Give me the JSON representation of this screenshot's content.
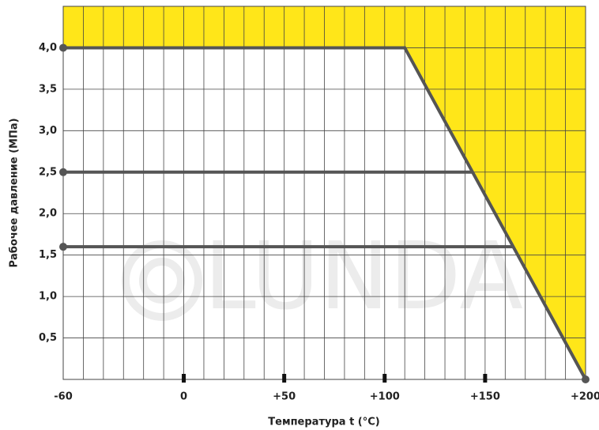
{
  "chart_data": {
    "type": "line",
    "x_label": "Температура t (°C)",
    "y_label": "Рабочее давление (МПа)",
    "watermark": "LUNDA",
    "xlim": [
      -60,
      200
    ],
    "ylim": [
      0,
      4.5
    ],
    "xticks": [
      -60,
      0,
      {
        "value": 50,
        "label": "+50"
      },
      {
        "value": 100,
        "label": "+100"
      },
      {
        "value": 150,
        "label": "+150"
      },
      {
        "value": 200,
        "label": "+200"
      }
    ],
    "xtick_marks": [
      0,
      50,
      100,
      150
    ],
    "xgrid": [
      -50,
      -40,
      -30,
      -20,
      -10,
      0,
      10,
      20,
      30,
      40,
      50,
      60,
      70,
      80,
      90,
      100,
      110,
      120,
      130,
      140,
      150,
      160,
      170,
      180,
      190
    ],
    "yticks": [
      {
        "value": 0.5,
        "label": "0,5"
      },
      {
        "value": 1.0,
        "label": "1,0"
      },
      {
        "value": 1.5,
        "label": "1,5"
      },
      {
        "value": 2.0,
        "label": "2,0"
      },
      {
        "value": 2.5,
        "label": "2,5"
      },
      {
        "value": 3.0,
        "label": "3,0"
      },
      {
        "value": 3.5,
        "label": "3,5"
      },
      {
        "value": 4.0,
        "label": "4,0"
      }
    ],
    "grid": true,
    "fill_color": "#ffe619",
    "series": [
      {
        "color": "#555555",
        "x": [
          -60,
          110,
          200
        ],
        "values": [
          4.0,
          4.0,
          0
        ]
      },
      {
        "color": "#555555",
        "x": [
          -60,
          143.75
        ],
        "values": [
          2.5,
          2.5
        ]
      },
      {
        "color": "#555555",
        "x": [
          -60,
          164
        ],
        "values": [
          1.6,
          1.6
        ]
      }
    ]
  }
}
